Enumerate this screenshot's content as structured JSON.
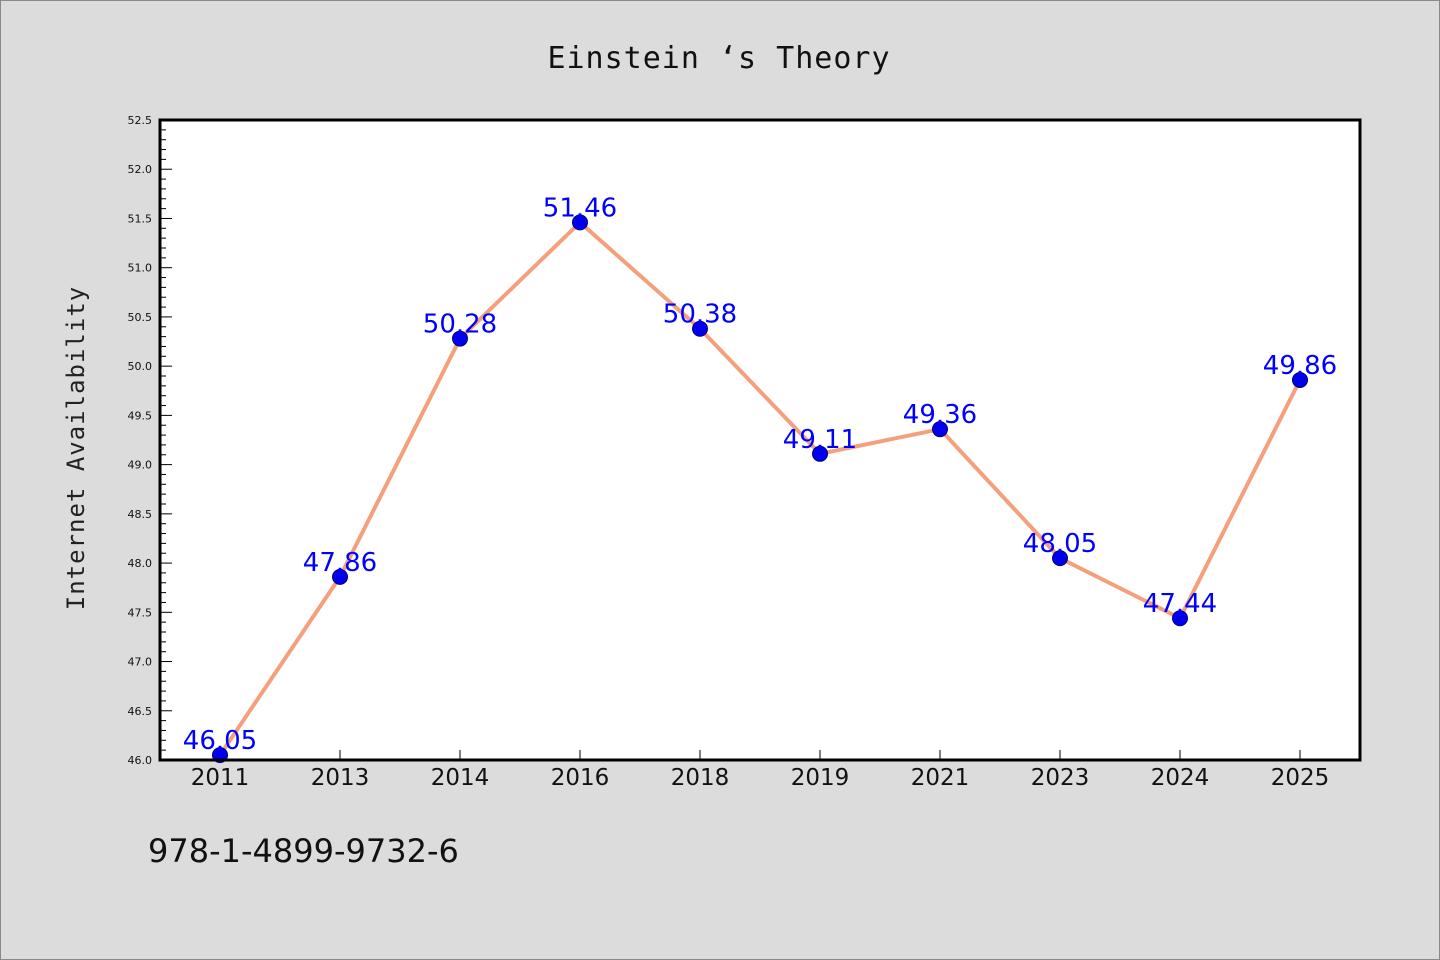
{
  "chart_data": {
    "type": "line",
    "title": "Einstein ‘s Theory",
    "xlabel": "",
    "ylabel": "Internet Availability",
    "categories": [
      "2011",
      "2013",
      "2014",
      "2016",
      "2018",
      "2019",
      "2021",
      "2023",
      "2024",
      "2025"
    ],
    "series": [
      {
        "values": [
          46.05,
          47.86,
          50.28,
          51.46,
          50.38,
          49.11,
          49.36,
          48.05,
          47.44,
          49.86
        ]
      }
    ],
    "data_labels": [
      "46.05",
      "47.86",
      "50.28",
      "51.46",
      "50.38",
      "49.11",
      "49.36",
      "48.05",
      "47.44",
      "49.86"
    ],
    "ylim": [
      46.0,
      52.5
    ],
    "yticks": [
      "46.0",
      "46.5",
      "47.0",
      "47.5",
      "48.0",
      "48.5",
      "49.0",
      "49.5",
      "50.0",
      "50.5",
      "51.0",
      "51.5",
      "52.0",
      "52.5"
    ],
    "grid": false,
    "line_color": "#f4a07c",
    "marker_color": "#0000ee",
    "label_color": "#0000ff",
    "footer_text": "978-1-4899-9732-6"
  }
}
